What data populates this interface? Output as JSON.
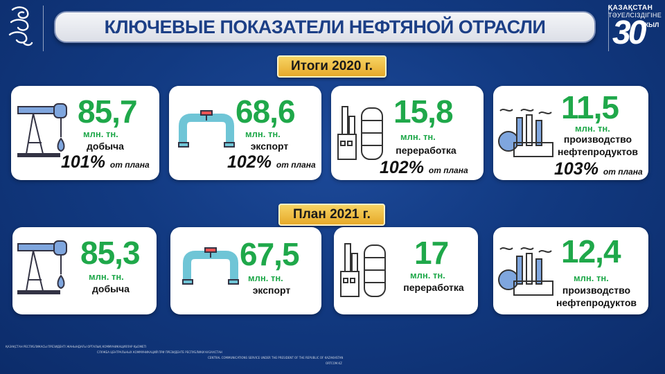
{
  "header": {
    "title": "Ключевые показатели нефтяной отрасли",
    "anniversary": {
      "line1": "ҚАЗАҚСТАН",
      "line2": "ТӘУЕЛСІЗДІГІНЕ",
      "number": "30",
      "suffix": "ЖЫЛ"
    }
  },
  "sections": [
    {
      "label": "Итоги  2020 г.",
      "cards": [
        {
          "value": "85,7",
          "unit": "млн. тн.",
          "label": "добыча",
          "pct": "101%",
          "pct_note": "от плана",
          "icon": "pump-jack-icon"
        },
        {
          "value": "68,6",
          "unit": "млн. тн.",
          "label": "экспорт",
          "pct": "102%",
          "pct_note": "от плана",
          "icon": "pipeline-icon"
        },
        {
          "value": "15,8",
          "unit": "млн. тн.",
          "label": "переработка",
          "pct": "102%",
          "pct_note": "от плана",
          "icon": "refinery-icon"
        },
        {
          "value": "11,5",
          "unit": "млн. тн.",
          "label": "производство нефтепродуктов",
          "pct": "103%",
          "pct_note": "от плана",
          "icon": "factory-icon"
        }
      ]
    },
    {
      "label": "План 2021 г.",
      "cards": [
        {
          "value": "85,3",
          "unit": "млн. тн.",
          "label": "добыча",
          "icon": "pump-jack-icon"
        },
        {
          "value": "67,5",
          "unit": "млн. тн.",
          "label": "экспорт",
          "icon": "pipeline-icon"
        },
        {
          "value": "17",
          "unit": "млн. тн.",
          "label": "переработка",
          "icon": "refinery-icon"
        },
        {
          "value": "12,4",
          "unit": "млн. тн.",
          "label": "производство нефтепродуктов",
          "icon": "factory-icon"
        }
      ]
    }
  ],
  "footer": {
    "org_kz": "ҚАЗАҚСТАН РЕСПУБЛИКАСЫ ПРЕЗИДЕНТІ ЖАНЫНДАҒЫ ОРТАЛЫҚ КОММУНИКАЦИЯЛАР ҚЫЗМЕТІ",
    "org_ru": "СЛУЖБА ЦЕНТРАЛЬНЫХ КОММУНИКАЦИЙ ПРИ ПРЕЗИДЕНТЕ РЕСПУБЛИКИ КАЗАХСТАН",
    "org_en": "CENTRAL COMMUNICATIONS SERVICE UNDER THE PRESIDENT OF THE REPUBLIC OF KAZAKHSTAN",
    "site": "ORTCOM.KZ"
  },
  "colors": {
    "value_green": "#1fa84a",
    "title_blue": "#1c3f86",
    "label_gold": "#f0c04a",
    "background_blue": "#123a82"
  }
}
